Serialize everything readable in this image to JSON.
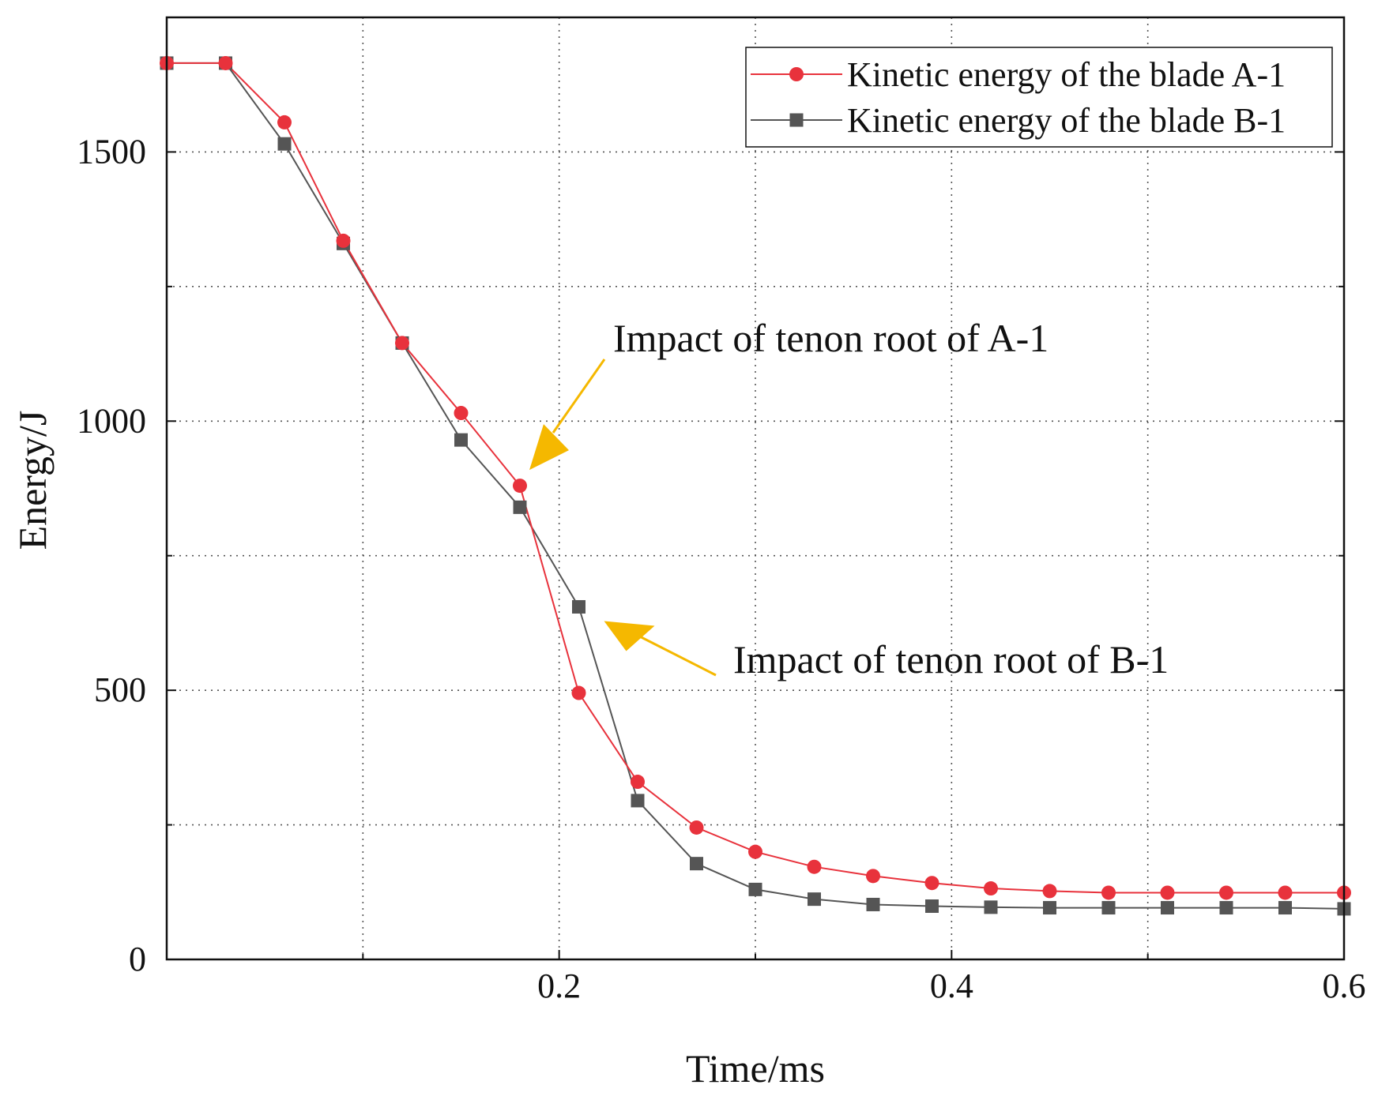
{
  "chart_data": {
    "type": "line",
    "title": "",
    "xlabel": "Time/ms",
    "ylabel": "Energy/J",
    "xlim": [
      0,
      0.6
    ],
    "ylim": [
      0,
      1750
    ],
    "xticks": [
      0.2,
      0.4,
      0.6
    ],
    "xtick_labels": [
      "0.2",
      "0.4",
      "0.6"
    ],
    "xgrid": [
      0.1,
      0.2,
      0.3,
      0.4,
      0.5
    ],
    "yticks": [
      0,
      500,
      1000,
      1500
    ],
    "ytick_labels": [
      "0",
      "500",
      "1000",
      "1500"
    ],
    "ygrid": [
      250,
      500,
      750,
      1000,
      1250,
      1500
    ],
    "grid": true,
    "legend_position": "top-right",
    "x": [
      0.0,
      0.03,
      0.06,
      0.09,
      0.12,
      0.15,
      0.18,
      0.21,
      0.24,
      0.27,
      0.3,
      0.33,
      0.36,
      0.39,
      0.42,
      0.45,
      0.48,
      0.51,
      0.54,
      0.57,
      0.6
    ],
    "series": [
      {
        "name": "Kinetic energy of the blade A-1",
        "color": "#e8323c",
        "marker": "circle",
        "values": [
          1665,
          1665,
          1555,
          1335,
          1145,
          1015,
          880,
          495,
          330,
          245,
          200,
          172,
          155,
          142,
          132,
          127,
          124,
          124,
          124,
          124,
          124
        ]
      },
      {
        "name": "Kinetic energy of the blade B-1",
        "color": "#555555",
        "marker": "square",
        "values": [
          1665,
          1665,
          1515,
          1330,
          1145,
          965,
          840,
          655,
          295,
          178,
          130,
          112,
          102,
          99,
          97,
          96,
          96,
          96,
          96,
          96,
          94
        ]
      }
    ],
    "annotations": [
      {
        "text": "Impact of tenon root of A-1",
        "target_series": 0,
        "target_x": 0.18,
        "color": "#f5b800"
      },
      {
        "text": "Impact of tenon root of B-1",
        "target_series": 1,
        "target_x": 0.21,
        "color": "#f5b800"
      }
    ]
  }
}
